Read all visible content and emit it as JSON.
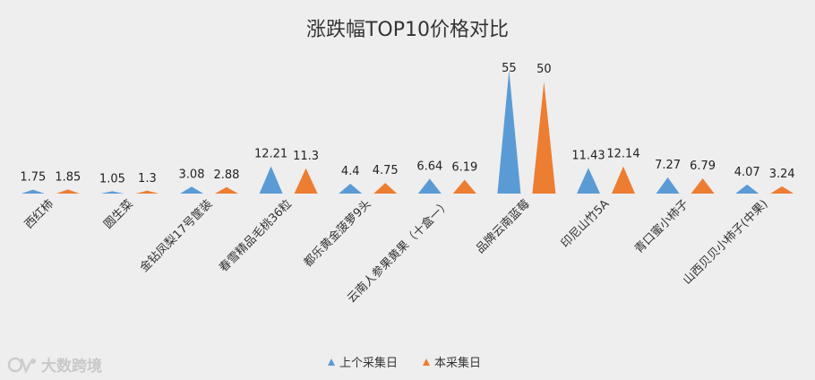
{
  "chart_data": {
    "type": "area",
    "title": "涨跌幅TOP10价格对比",
    "categories": [
      "西红柿",
      "圆生菜",
      "金钻凤梨17号筐装",
      "春雪精品毛桃36粒",
      "都乐黄金菠萝9头",
      "云南人参果黄果（十盒一）",
      "品牌云南蓝莓",
      "印尼山竹5A",
      "青口蜜小柿子",
      "山西贝贝小柿子(中果)"
    ],
    "series": [
      {
        "name": "上个采集日",
        "color": "#5b9bd5",
        "values": [
          1.75,
          1.05,
          3.08,
          12.21,
          4.4,
          6.64,
          55,
          11.43,
          7.27,
          4.07
        ]
      },
      {
        "name": "本采集日",
        "color": "#ed7d31",
        "values": [
          1.85,
          1.3,
          2.88,
          11.3,
          4.75,
          6.19,
          50,
          12.14,
          6.79,
          3.24
        ]
      }
    ],
    "data_labels": [
      [
        "1.75",
        "1.05",
        "3.08",
        "12.21",
        "4.4",
        "6.64",
        "55",
        "11.43",
        "7.27",
        "4.07"
      ],
      [
        "1.85",
        "1.3",
        "2.88",
        "11.3",
        "4.75",
        "6.19",
        "50",
        "12.14",
        "6.79",
        "3.24"
      ]
    ],
    "ylim": [
      0,
      60
    ],
    "grid": false,
    "legend_position": "bottom"
  },
  "watermark": {
    "text": "大数跨境",
    "icon": "brand-logo-icon"
  }
}
